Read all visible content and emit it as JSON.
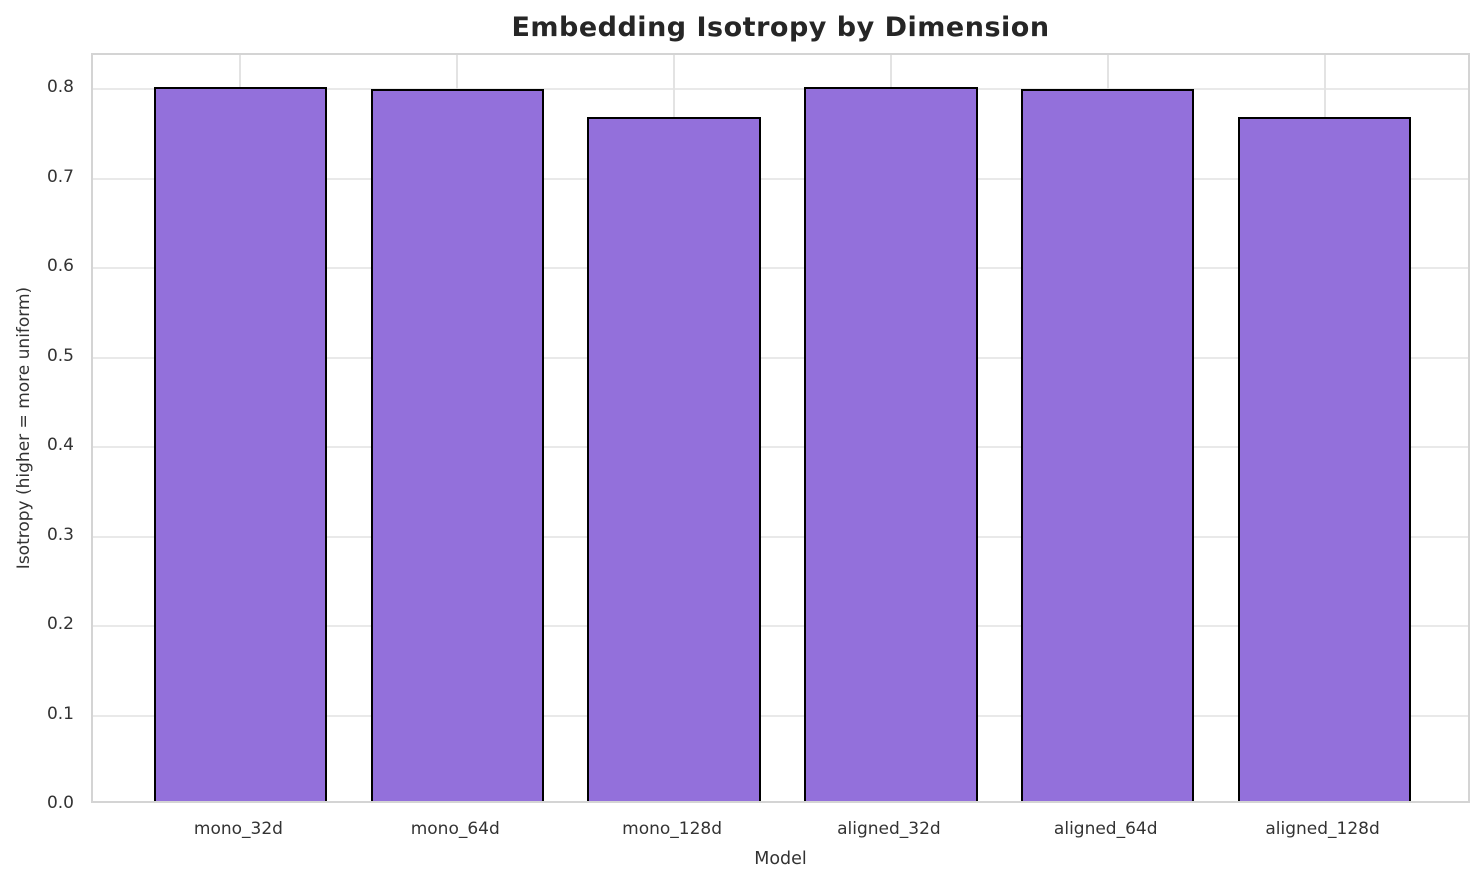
{
  "chart_data": {
    "type": "bar",
    "title": "Embedding Isotropy by Dimension",
    "xlabel": "Model",
    "ylabel": "Isotropy (higher = more uniform)",
    "categories": [
      "mono_32d",
      "mono_64d",
      "mono_128d",
      "aligned_32d",
      "aligned_64d",
      "aligned_128d"
    ],
    "values": [
      0.798,
      0.796,
      0.764,
      0.798,
      0.796,
      0.764
    ],
    "yticks": [
      0.0,
      0.1,
      0.2,
      0.3,
      0.4,
      0.5,
      0.6,
      0.7,
      0.8
    ],
    "ylim": [
      0,
      0.838
    ],
    "grid": true,
    "legend": "none",
    "colors": {
      "bar_fill": "#9370DB",
      "bar_edge": "#000000",
      "grid_h": "#e9e9e9",
      "grid_v": "#e3e3e3",
      "spine": "#d4d4d4",
      "tick_text": "#333333",
      "title_text": "#262626",
      "background": "#ffffff"
    }
  }
}
